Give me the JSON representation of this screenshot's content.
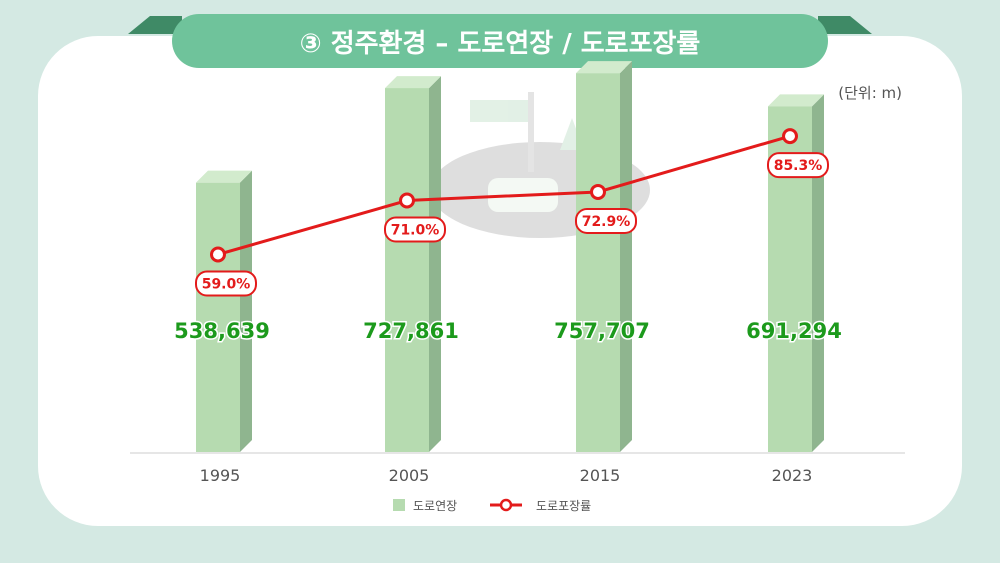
{
  "title": "③ 정주환경 – 도로연장 / 도로포장률",
  "unit": "(단위: m)",
  "colors": {
    "background": "#d4e9e3",
    "card": "#ffffff",
    "banner": "#6fc39b",
    "banner_dark": "#3f8a66",
    "bar_front": "#b6dbb0",
    "bar_side": "#8fb58f",
    "bar_top": "#d2ebcd",
    "bar_value": "#1c9a1c",
    "line": "#e31b1b",
    "axis_text": "#555555"
  },
  "chart_data": {
    "type": "bar",
    "title": "③ 정주환경 – 도로연장 / 도로포장률",
    "categories": [
      "1995",
      "2005",
      "2015",
      "2023"
    ],
    "ylim": [
      0,
      800000
    ],
    "y2lim": [
      0,
      100
    ],
    "legend_position": "bottom",
    "grid": false,
    "series": [
      {
        "name": "도로연장",
        "type": "bar",
        "values": [
          538639,
          727861,
          757707,
          691294
        ],
        "labels": [
          "538,639",
          "727,861",
          "757,707",
          "691,294"
        ]
      },
      {
        "name": "도로포장률",
        "type": "line",
        "values": [
          59.0,
          71.0,
          72.9,
          85.3
        ],
        "labels": [
          "59.0%",
          "71.0%",
          "72.9%",
          "85.3%"
        ]
      }
    ]
  },
  "legend": {
    "bar_label": "도로연장",
    "line_label": "도로포장률"
  }
}
